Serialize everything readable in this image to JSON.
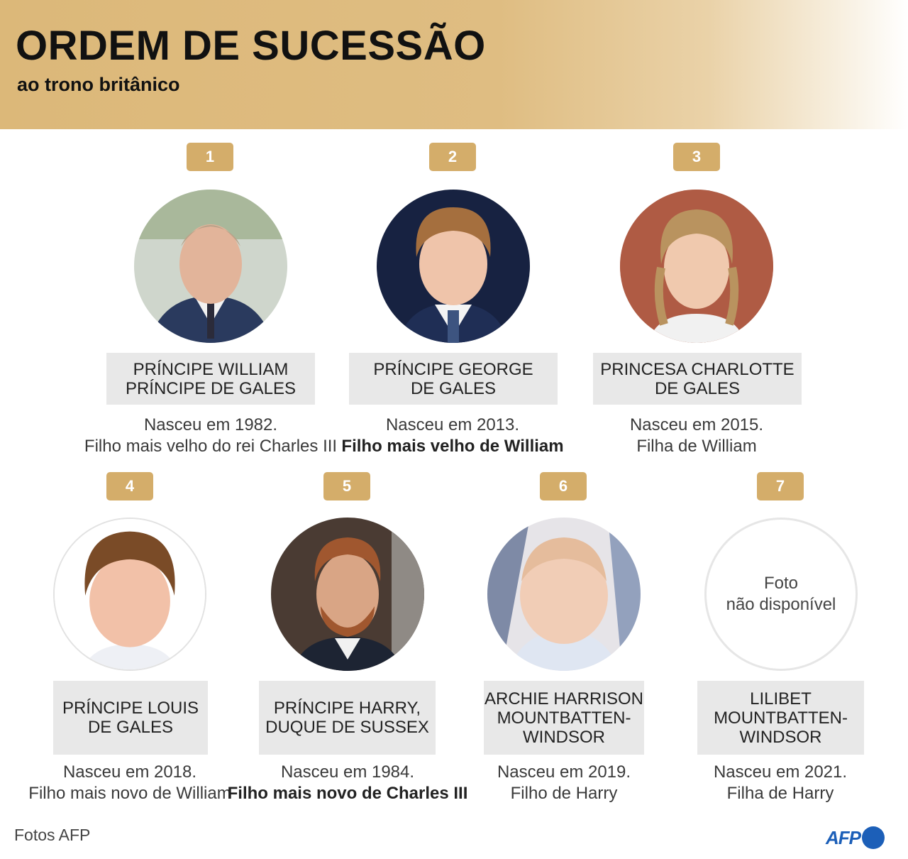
{
  "header": {
    "title": "ORDEM DE SUCESSÃO",
    "subtitle": "ao trono britânico"
  },
  "people": [
    {
      "rank": "1",
      "name": "PRÍNCIPE WILLIAM\nPRÍNCIPE DE GALES",
      "line1": "Nasceu em 1982.",
      "line2": "Filho mais velho do rei Charles III",
      "photo": "photo-william"
    },
    {
      "rank": "2",
      "name": "PRÍNCIPE GEORGE\nDE GALES",
      "line1": "Nasceu em 2013.",
      "line2": "Filho mais velho de William",
      "photo": "photo-george"
    },
    {
      "rank": "3",
      "name": "PRINCESA CHARLOTTE\nDE GALES",
      "line1": "Nasceu em 2015.",
      "line2": "Filha de William",
      "photo": "photo-charlotte"
    },
    {
      "rank": "4",
      "name": "PRÍNCIPE LOUIS\nDE GALES",
      "line1": "Nasceu em 2018.",
      "line2": "Filho mais novo de William",
      "photo": "photo-louis"
    },
    {
      "rank": "5",
      "name": "PRÍNCIPE HARRY,\nDUQUE DE SUSSEX",
      "line1": "Nasceu em 1984.",
      "line2": "Filho mais novo de Charles III",
      "photo": "photo-harry"
    },
    {
      "rank": "6",
      "name": "ARCHIE HARRISON\nMOUNTBATTEN-\nWINDSOR",
      "line1": "Nasceu em 2019.",
      "line2": "Filho de Harry",
      "photo": "photo-archie"
    },
    {
      "rank": "7",
      "name": "LILIBET\nMOUNTBATTEN-\nWINDSOR",
      "line1": "Nasceu em 2021.",
      "line2": "Filha de Harry",
      "photo": "photo-placeholder",
      "placeholder": "Foto\nnão disponível"
    }
  ],
  "footer": {
    "credit": "Fotos AFP",
    "logo_text": "AFP"
  },
  "colors": {
    "header_gold": "#dcb879",
    "badge_gold": "#d4ad6a",
    "name_box_gray": "#e8e8e8",
    "afp_blue": "#1c5fb8"
  }
}
